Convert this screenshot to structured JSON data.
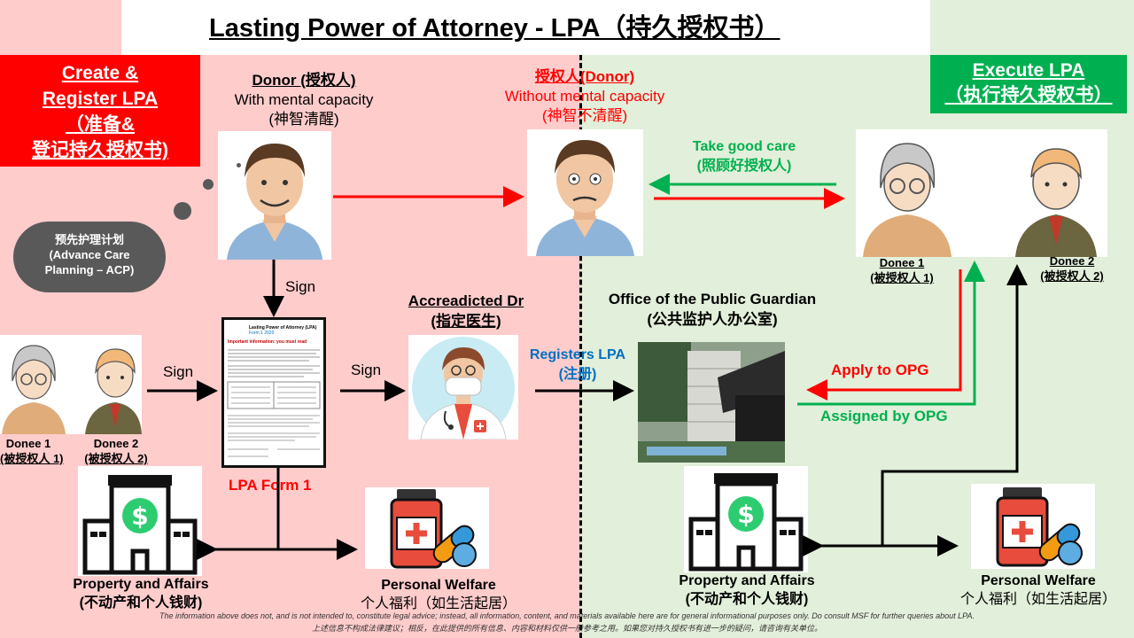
{
  "title": "Lasting Power of Attorney - LPA（持久授权书）",
  "create_box": [
    "Create &",
    "Register LPA",
    "（准备&",
    "登记持久授权书)"
  ],
  "execute_box": [
    "Execute LPA",
    "（执行持久授权书）"
  ],
  "donor_capable": {
    "name": "Donor (授权人)",
    "line1": "With mental capacity",
    "line2": "(神智清醒)"
  },
  "donor_incapable": {
    "name": "授权人(Donor)",
    "line1": "Without mental capacity",
    "line2": "(神智不清醒)"
  },
  "acp_cloud": {
    "line1": "预先护理计划",
    "line2": "(Advance Care",
    "line3": "Planning – ACP)"
  },
  "sign_labels": {
    "down": "Sign",
    "donees": "Sign",
    "to_dr": "Sign"
  },
  "accredited_dr": {
    "name": "Accreadicted Dr",
    "cn": "(指定医生)"
  },
  "registers_lpa": {
    "en": "Registers LPA",
    "cn": "(注册)"
  },
  "opg": {
    "name": "Office of the Public Guardian",
    "cn": "(公共监护人办公室)"
  },
  "take_good_care": {
    "en": "Take good care",
    "cn": "(照顾好授权人)"
  },
  "apply_to_opg": "Apply to OPG",
  "assigned_by_opg": "Assigned by OPG",
  "donees_left": [
    {
      "name": "Donee 1",
      "cn": "(被授权人 1)"
    },
    {
      "name": "Donee 2",
      "cn": "(被授权人 2)"
    }
  ],
  "donees_right": [
    {
      "name": "Donee 1",
      "cn": "(被授权人 1)"
    },
    {
      "name": "Donee 2",
      "cn": "(被授权人 2)"
    }
  ],
  "lpa_form": {
    "label": "LPA Form 1",
    "doc_title": "Lasting Power of Attorney (LPA)",
    "doc_subtitle": "Form 1 2020",
    "doc_heading": "Important information: you must read"
  },
  "property_left": {
    "en": "Property and Affairs",
    "cn": "(不动产和个人钱财)"
  },
  "welfare_left": {
    "en": "Personal Welfare",
    "cn": "个人福利（如生活起居）"
  },
  "property_right": {
    "en": "Property and Affairs",
    "cn": "(不动产和个人钱财)"
  },
  "welfare_right": {
    "en": "Personal Welfare",
    "cn": "个人福利（如生活起居）"
  },
  "disclaimer": {
    "en": "The information above does not, and is not intended to, constitute legal advice; instead, all information, content, and materials available here are for general informational purposes only. Do consult MSF for further queries about LPA.",
    "cn": "上述信息不构成法律建议；相反，在此提供的所有信息、内容和材料仅供一般参考之用。如果您对持久授权书有进一步的疑问，请咨询有关单位。"
  },
  "colors": {
    "red": "#ff0000",
    "green": "#00b050",
    "blue": "#0070c0",
    "left_bg": "#ffcccc",
    "right_bg": "#e2efda"
  }
}
